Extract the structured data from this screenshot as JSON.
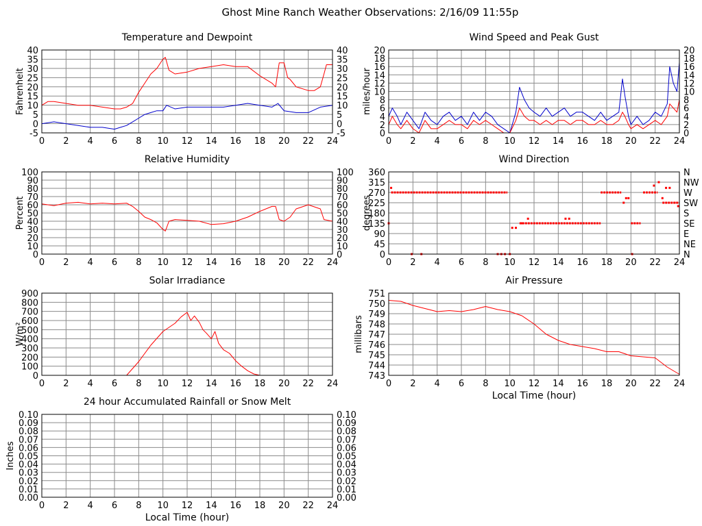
{
  "title": "Ghost Mine Ranch Weather Observations: 2/16/09 11:55p",
  "colors": {
    "red": "#ff0000",
    "blue": "#0000cc",
    "grid": "#8a8a8a"
  },
  "x_label": "Local Time (hour)",
  "chart_data": [
    {
      "id": "temp",
      "type": "line",
      "title": "Temperature and Dewpoint",
      "ylabel": "Fahrenheit",
      "xlim": [
        0,
        24
      ],
      "ylim": [
        -5,
        40
      ],
      "x_ticks": [
        "0",
        "2",
        "4",
        "6",
        "8",
        "10",
        "12",
        "14",
        "16",
        "18",
        "20",
        "22",
        "24"
      ],
      "y_ticks": [
        "-5",
        "0",
        "5",
        "10",
        "15",
        "20",
        "25",
        "30",
        "35",
        "40"
      ],
      "right_ticks": [
        "-5",
        "0",
        "5",
        "10",
        "15",
        "20",
        "25",
        "30",
        "35",
        "40"
      ],
      "grid": true,
      "series": [
        {
          "color": "#ff0000",
          "x": [
            0,
            0.5,
            1,
            2,
            3,
            4,
            5,
            6,
            6.5,
            7,
            7.5,
            8,
            8.5,
            9,
            9.5,
            10,
            10.2,
            10.5,
            11,
            12,
            13,
            14,
            15,
            16,
            17,
            18,
            19,
            19.3,
            19.6,
            20,
            20.3,
            20.5,
            21,
            22,
            22.5,
            23,
            23.3,
            23.5,
            24
          ],
          "y": [
            10,
            12,
            12,
            11,
            10,
            10,
            9,
            8,
            8,
            9,
            11,
            17,
            22,
            27,
            30,
            35,
            36,
            29,
            27,
            28,
            30,
            31,
            32,
            31,
            31,
            26,
            22,
            20,
            33,
            33,
            25,
            24,
            20,
            18,
            18,
            20,
            27,
            32,
            32
          ]
        },
        {
          "color": "#0000cc",
          "x": [
            0,
            1,
            2,
            3,
            4,
            5,
            6,
            6.5,
            7,
            7.5,
            8,
            8.5,
            9,
            9.5,
            10,
            10.3,
            11,
            12,
            13,
            14,
            15,
            16,
            17,
            18,
            19,
            19.5,
            20,
            21,
            22,
            23,
            24
          ],
          "y": [
            0,
            1,
            0,
            -1,
            -2,
            -2,
            -3,
            -2,
            -1,
            1,
            3,
            5,
            6,
            7,
            7,
            10,
            8,
            9,
            9,
            9,
            9,
            10,
            11,
            10,
            9,
            11,
            7,
            6,
            6,
            9,
            10
          ]
        }
      ]
    },
    {
      "id": "wind",
      "type": "line",
      "title": "Wind Speed and Peak Gust",
      "ylabel": "miles/hour",
      "xlim": [
        0,
        24
      ],
      "ylim": [
        0,
        20
      ],
      "x_ticks": [
        "0",
        "2",
        "4",
        "6",
        "8",
        "10",
        "12",
        "14",
        "16",
        "18",
        "20",
        "22",
        "24"
      ],
      "y_ticks": [
        "0",
        "2",
        "4",
        "6",
        "8",
        "10",
        "12",
        "14",
        "16",
        "18",
        "20"
      ],
      "right_ticks": [
        "0",
        "2",
        "4",
        "6",
        "8",
        "10",
        "12",
        "14",
        "16",
        "18",
        "20"
      ],
      "grid": true,
      "series": [
        {
          "color": "#0000cc",
          "x": [
            0,
            0.3,
            0.7,
            1,
            1.5,
            2,
            2.5,
            3,
            3.5,
            4,
            4.5,
            5,
            5.5,
            6,
            6.5,
            7,
            7.5,
            8,
            8.5,
            9,
            9.5,
            10,
            10.5,
            10.8,
            11.2,
            11.6,
            12,
            12.5,
            13,
            13.5,
            14,
            14.5,
            15,
            15.5,
            16,
            16.5,
            17,
            17.5,
            18,
            18.5,
            19,
            19.3,
            19.5,
            19.8,
            20,
            20.5,
            21,
            21.5,
            22,
            22.5,
            23,
            23.2,
            23.5,
            23.8,
            24
          ],
          "y": [
            4,
            6,
            4,
            2,
            5,
            3,
            1,
            5,
            3,
            2,
            4,
            5,
            3,
            4,
            2,
            5,
            3,
            5,
            4,
            2,
            1,
            0,
            5,
            11,
            8,
            6,
            5,
            4,
            6,
            4,
            5,
            6,
            4,
            5,
            5,
            4,
            3,
            5,
            3,
            4,
            5,
            13,
            9,
            4,
            2,
            4,
            2,
            3,
            5,
            4,
            7,
            16,
            12,
            10,
            17
          ]
        },
        {
          "color": "#ff0000",
          "x": [
            0,
            0.3,
            0.7,
            1,
            1.5,
            2,
            2.5,
            3,
            3.5,
            4,
            4.5,
            5,
            5.5,
            6,
            6.5,
            7,
            7.5,
            8,
            8.5,
            9,
            9.5,
            10,
            10.5,
            10.8,
            11.2,
            11.6,
            12,
            12.5,
            13,
            13.5,
            14,
            14.5,
            15,
            15.5,
            16,
            16.5,
            17,
            17.5,
            18,
            18.5,
            19,
            19.3,
            19.5,
            19.8,
            20,
            20.5,
            21,
            21.5,
            22,
            22.5,
            23,
            23.2,
            23.5,
            23.8,
            24
          ],
          "y": [
            2,
            4,
            2,
            1,
            3,
            1,
            0,
            3,
            1,
            1,
            2,
            3,
            2,
            2,
            1,
            3,
            2,
            3,
            2,
            1,
            0,
            0,
            3,
            6,
            4,
            3,
            3,
            2,
            3,
            2,
            3,
            3,
            2,
            3,
            3,
            2,
            2,
            3,
            2,
            2,
            3,
            5,
            4,
            2,
            1,
            2,
            1,
            2,
            3,
            2,
            4,
            7,
            6,
            5,
            8
          ]
        }
      ]
    },
    {
      "id": "rh",
      "type": "line",
      "title": "Relative Humidity",
      "ylabel": "Percent",
      "xlim": [
        0,
        24
      ],
      "ylim": [
        0,
        100
      ],
      "x_ticks": [
        "0",
        "2",
        "4",
        "6",
        "8",
        "10",
        "12",
        "14",
        "16",
        "18",
        "20",
        "22",
        "24"
      ],
      "y_ticks": [
        "0",
        "10",
        "20",
        "30",
        "40",
        "50",
        "60",
        "70",
        "80",
        "90",
        "100"
      ],
      "right_ticks": [
        "0",
        "10",
        "20",
        "30",
        "40",
        "50",
        "60",
        "70",
        "80",
        "90",
        "100"
      ],
      "grid": true,
      "series": [
        {
          "color": "#ff0000",
          "x": [
            0,
            1,
            2,
            3,
            4,
            5,
            6,
            7,
            7.5,
            8,
            8.5,
            9,
            9.5,
            10,
            10.2,
            10.5,
            11,
            12,
            13,
            14,
            15,
            16,
            17,
            18,
            19,
            19.3,
            19.6,
            20,
            20.5,
            21,
            22,
            23,
            23.3,
            24
          ],
          "y": [
            61,
            59,
            62,
            63,
            61,
            62,
            61,
            62,
            58,
            52,
            45,
            42,
            38,
            30,
            28,
            40,
            42,
            41,
            40,
            36,
            37,
            40,
            45,
            52,
            58,
            58,
            42,
            40,
            45,
            55,
            60,
            55,
            42,
            40
          ]
        }
      ]
    },
    {
      "id": "wdir",
      "type": "scatter",
      "title": "Wind Direction",
      "ylabel": "degrees",
      "xlim": [
        0,
        24
      ],
      "ylim": [
        0,
        360
      ],
      "x_ticks": [
        "0",
        "2",
        "4",
        "6",
        "8",
        "10",
        "12",
        "14",
        "16",
        "18",
        "20",
        "22",
        "24"
      ],
      "y_ticks": [
        "0",
        "45",
        "90",
        "135",
        "180",
        "225",
        "270",
        "315",
        "360"
      ],
      "right_ticks": [
        "N",
        "NE",
        "E",
        "SE",
        "S",
        "SW",
        "W",
        "NW",
        "N"
      ],
      "grid": true,
      "series": [
        {
          "color": "#ff0000",
          "segments": [
            {
              "x0": 0.2,
              "x1": 9.8,
              "y": 270
            },
            {
              "x0": 10.8,
              "x1": 17.5,
              "y": 135
            },
            {
              "x0": 17.5,
              "x1": 19.2,
              "y": 270
            },
            {
              "x0": 20,
              "x1": 20.8,
              "y": 135
            },
            {
              "x0": 21,
              "x1": 22.2,
              "y": 270
            },
            {
              "x0": 22.6,
              "x1": 24,
              "y": 225
            }
          ],
          "x": [
            0,
            0.2,
            1.9,
            2.7,
            9.0,
            9.3,
            9.6,
            10.0,
            10.2,
            10.5,
            11.0,
            11.5,
            14.6,
            14.9,
            19.4,
            19.6,
            19.8,
            20.1,
            21.9,
            22.3,
            22.6,
            22.9,
            23.2,
            23.6,
            23.9
          ],
          "y": [
            135,
            290,
            0,
            0,
            0,
            0,
            0,
            0,
            115,
            115,
            135,
            155,
            155,
            155,
            225,
            245,
            245,
            0,
            300,
            315,
            245,
            290,
            290,
            225,
            210
          ]
        }
      ]
    },
    {
      "id": "solar",
      "type": "line",
      "title": "Solar Irradiance",
      "ylabel": "W/m²",
      "xlim": [
        0,
        24
      ],
      "ylim": [
        0,
        900
      ],
      "x_ticks": [
        "0",
        "2",
        "4",
        "6",
        "8",
        "10",
        "12",
        "14",
        "16",
        "18",
        "20",
        "22",
        "24"
      ],
      "y_ticks": [
        "0",
        "100",
        "200",
        "300",
        "400",
        "500",
        "600",
        "700",
        "800",
        "900"
      ],
      "right_ticks": [],
      "grid": true,
      "series": [
        {
          "color": "#ff0000",
          "x": [
            0,
            7,
            8,
            9,
            10,
            11,
            11.5,
            12,
            12.3,
            12.6,
            13,
            13.3,
            13.6,
            14,
            14.3,
            14.6,
            15,
            15.5,
            16,
            16.5,
            17,
            17.5,
            18,
            24
          ],
          "y": [
            0,
            0,
            150,
            330,
            480,
            570,
            640,
            690,
            600,
            650,
            580,
            500,
            460,
            400,
            480,
            350,
            280,
            240,
            160,
            100,
            50,
            15,
            0,
            0
          ]
        }
      ]
    },
    {
      "id": "pressure",
      "type": "line",
      "title": "Air Pressure",
      "ylabel": "millibars",
      "xlim": [
        0,
        24
      ],
      "ylim": [
        743,
        751
      ],
      "x_ticks": [
        "0",
        "2",
        "4",
        "6",
        "8",
        "10",
        "12",
        "14",
        "16",
        "18",
        "20",
        "22",
        "24"
      ],
      "y_ticks": [
        "743",
        "744",
        "745",
        "746",
        "747",
        "748",
        "749",
        "750",
        "751"
      ],
      "right_ticks": [],
      "grid": true,
      "series": [
        {
          "color": "#ff0000",
          "x": [
            0,
            1,
            2,
            3,
            4,
            5,
            6,
            7,
            8,
            9,
            10,
            11,
            12,
            13,
            14,
            15,
            16,
            17,
            18,
            19,
            20,
            21,
            22,
            23,
            24
          ],
          "y": [
            750.3,
            750.2,
            749.8,
            749.5,
            749.2,
            749.3,
            749.2,
            749.4,
            749.7,
            749.4,
            749.2,
            748.8,
            748.0,
            747.0,
            746.4,
            746.0,
            745.8,
            745.6,
            745.3,
            745.3,
            744.9,
            744.8,
            744.7,
            743.8,
            743.1
          ]
        }
      ]
    },
    {
      "id": "rain",
      "type": "line",
      "title": "24 hour Accumulated Rainfall or Snow Melt",
      "ylabel": "Inches",
      "xlim": [
        0,
        24
      ],
      "ylim": [
        0,
        0.1
      ],
      "x_ticks": [
        "0",
        "2",
        "4",
        "6",
        "8",
        "10",
        "12",
        "14",
        "16",
        "18",
        "20",
        "22",
        "24"
      ],
      "y_ticks": [
        "0.00",
        "0.01",
        "0.02",
        "0.03",
        "0.04",
        "0.05",
        "0.06",
        "0.07",
        "0.08",
        "0.09",
        "0.10"
      ],
      "right_ticks": [
        "0.00",
        "0.01",
        "0.02",
        "0.03",
        "0.04",
        "0.05",
        "0.06",
        "0.07",
        "0.08",
        "0.09",
        "0.10"
      ],
      "grid": true,
      "series": [
        {
          "color": "#ff0000",
          "x": [
            0,
            24
          ],
          "y": [
            0,
            0
          ]
        }
      ]
    }
  ]
}
